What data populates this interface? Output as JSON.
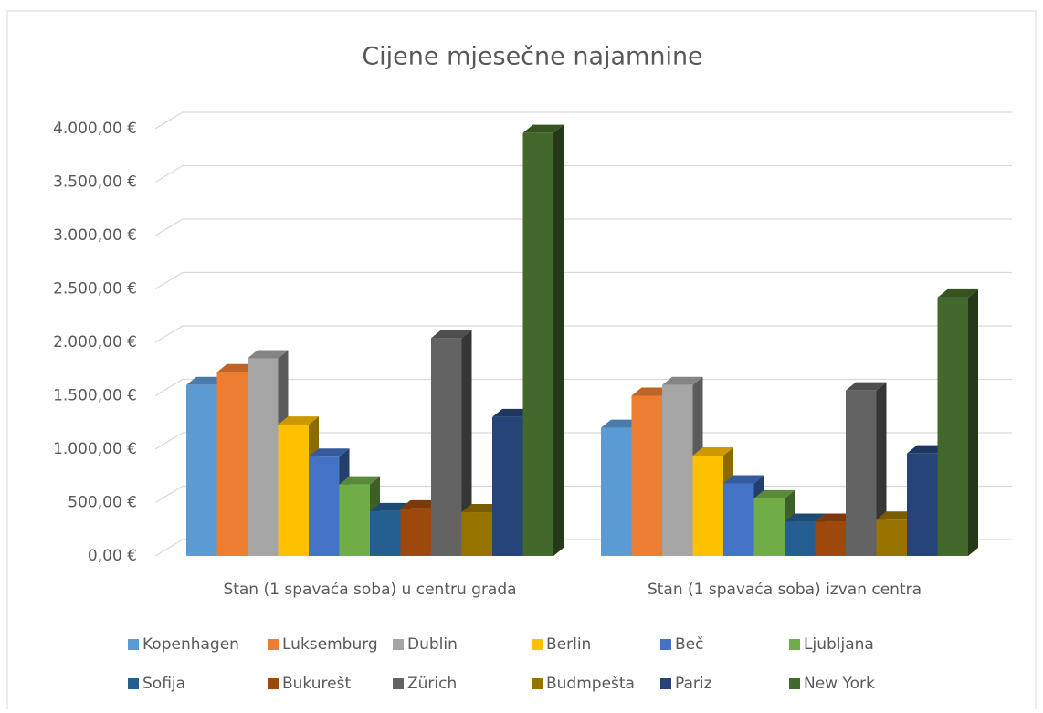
{
  "chart_data": {
    "type": "bar3d",
    "title": "Cijene mjesečne najamnine",
    "categories": [
      "Stan (1 spavaća soba) u centru grada",
      "Stan (1 spavaća soba) izvan centra"
    ],
    "series": [
      {
        "name": "Kopenhagen",
        "color": "#5b9bd5",
        "values": [
          1600,
          1200
        ]
      },
      {
        "name": "Luksemburg",
        "color": "#ed7d31",
        "values": [
          1720,
          1500
        ]
      },
      {
        "name": "Dublin",
        "color": "#a5a5a5",
        "values": [
          1850,
          1600
        ]
      },
      {
        "name": "Berlin",
        "color": "#ffc000",
        "values": [
          1230,
          940
        ]
      },
      {
        "name": "Beč",
        "color": "#4472c4",
        "values": [
          930,
          680
        ]
      },
      {
        "name": "Ljubljana",
        "color": "#70ad47",
        "values": [
          670,
          540
        ]
      },
      {
        "name": "Sofija",
        "color": "#255e91",
        "values": [
          420,
          320
        ]
      },
      {
        "name": "Bukurešt",
        "color": "#9e480e",
        "values": [
          445,
          320
        ]
      },
      {
        "name": "Zürich",
        "color": "#636363",
        "values": [
          2040,
          1550
        ]
      },
      {
        "name": "Budmpešta",
        "color": "#997300",
        "values": [
          410,
          340
        ]
      },
      {
        "name": "Pariz",
        "color": "#264478",
        "values": [
          1300,
          960
        ]
      },
      {
        "name": "New York",
        "color": "#43682b",
        "values": [
          3960,
          2420
        ]
      }
    ],
    "ylim": [
      0,
      4000
    ],
    "yticks": [
      {
        "value": 0,
        "label": "0,00 €"
      },
      {
        "value": 500,
        "label": "500,00 €"
      },
      {
        "value": 1000,
        "label": "1.000,00 €"
      },
      {
        "value": 1500,
        "label": "1.500,00 €"
      },
      {
        "value": 2000,
        "label": "2.000,00 €"
      },
      {
        "value": 2500,
        "label": "2.500,00 €"
      },
      {
        "value": 3000,
        "label": "3.000,00 €"
      },
      {
        "value": 3500,
        "label": "3.500,00 €"
      },
      {
        "value": 4000,
        "label": "4.000,00 €"
      }
    ],
    "grid": true,
    "legend": "bottom"
  }
}
